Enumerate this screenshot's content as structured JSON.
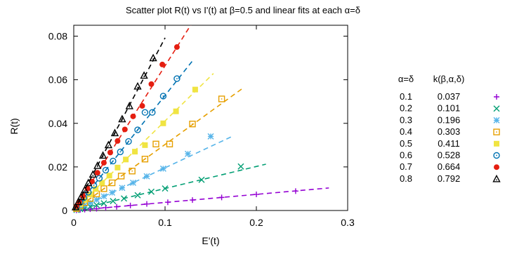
{
  "chart_data": {
    "type": "scatter",
    "title": "Scatter plot R(t) vs I'(t) at β=0.5 and linear fits at each α=δ",
    "xlabel": "E'(t)",
    "ylabel": "R(t)",
    "xlim": [
      0,
      0.3
    ],
    "ylim": [
      0,
      0.085
    ],
    "xticks": [
      "0",
      "0.1",
      "0.2",
      "0.3"
    ],
    "yticks": [
      "0",
      "0.02",
      "0.04",
      "0.06",
      "0.08"
    ],
    "grid": false,
    "legend_position": "right",
    "legend_headers": [
      "α=δ",
      "k(β,α,δ)"
    ],
    "series": [
      {
        "name": "0.1",
        "k": "0.037",
        "color": "#9400d3",
        "marker": "plus",
        "x": [
          0.003,
          0.007,
          0.012,
          0.018,
          0.025,
          0.035,
          0.047,
          0.062,
          0.08,
          0.103,
          0.13,
          0.162,
          0.2,
          0.243
        ],
        "y": [
          0.0001,
          0.0003,
          0.0004,
          0.0006,
          0.0008,
          0.0013,
          0.0017,
          0.0023,
          0.003,
          0.0038,
          0.0048,
          0.006,
          0.0074,
          0.0089
        ]
      },
      {
        "name": "0.2",
        "k": "0.101",
        "color": "#009e73",
        "marker": "x",
        "x": [
          0.003,
          0.007,
          0.012,
          0.018,
          0.025,
          0.033,
          0.043,
          0.055,
          0.07,
          0.085,
          0.1,
          0.14,
          0.183
        ],
        "y": [
          0.0003,
          0.0007,
          0.0012,
          0.0018,
          0.0025,
          0.0033,
          0.0043,
          0.0055,
          0.007,
          0.0086,
          0.0101,
          0.0141,
          0.0202
        ]
      },
      {
        "name": "0.3",
        "k": "0.196",
        "color": "#56b4e9",
        "marker": "star",
        "x": [
          0.003,
          0.007,
          0.012,
          0.018,
          0.025,
          0.033,
          0.042,
          0.053,
          0.065,
          0.08,
          0.098,
          0.125,
          0.15
        ],
        "y": [
          0.0006,
          0.0014,
          0.0024,
          0.0035,
          0.0049,
          0.0065,
          0.0082,
          0.0104,
          0.0127,
          0.0157,
          0.0192,
          0.026,
          0.034
        ]
      },
      {
        "name": "0.4",
        "k": "0.303",
        "color": "#e69f00",
        "marker": "square-dot",
        "x": [
          0.003,
          0.007,
          0.012,
          0.018,
          0.025,
          0.033,
          0.042,
          0.052,
          0.064,
          0.078,
          0.09,
          0.105,
          0.13,
          0.162
        ],
        "y": [
          0.0009,
          0.0021,
          0.0036,
          0.0055,
          0.0076,
          0.01,
          0.0127,
          0.0158,
          0.0181,
          0.0236,
          0.0305,
          0.0305,
          0.0397,
          0.0512
        ]
      },
      {
        "name": "0.5",
        "k": "0.411",
        "color": "#f0e442",
        "marker": "filled-square",
        "x": [
          0.003,
          0.007,
          0.012,
          0.018,
          0.024,
          0.031,
          0.039,
          0.048,
          0.057,
          0.067,
          0.078,
          0.098,
          0.112,
          0.133
        ],
        "y": [
          0.0012,
          0.0029,
          0.0049,
          0.0074,
          0.0099,
          0.0127,
          0.016,
          0.0197,
          0.0234,
          0.027,
          0.03,
          0.04,
          0.0455,
          0.0555
        ]
      },
      {
        "name": "0.6",
        "k": "0.528",
        "color": "#0072b2",
        "marker": "circle-dot",
        "x": [
          0.003,
          0.007,
          0.011,
          0.016,
          0.022,
          0.028,
          0.035,
          0.043,
          0.051,
          0.06,
          0.07,
          0.078,
          0.086,
          0.098,
          0.113
        ],
        "y": [
          0.0016,
          0.0037,
          0.0058,
          0.0084,
          0.0116,
          0.0148,
          0.0185,
          0.0227,
          0.0269,
          0.0317,
          0.037,
          0.045,
          0.045,
          0.0525,
          0.0605
        ]
      },
      {
        "name": "0.7",
        "k": "0.664",
        "color": "#e51e10",
        "marker": "filled-circle",
        "x": [
          0.003,
          0.006,
          0.01,
          0.015,
          0.02,
          0.026,
          0.033,
          0.04,
          0.048,
          0.056,
          0.065,
          0.075,
          0.085,
          0.097,
          0.113
        ],
        "y": [
          0.002,
          0.004,
          0.0066,
          0.01,
          0.0133,
          0.0173,
          0.0219,
          0.0266,
          0.0319,
          0.0372,
          0.0432,
          0.048,
          0.058,
          0.067,
          0.075
        ]
      },
      {
        "name": "0.8",
        "k": "0.792",
        "color": "#000000",
        "marker": "triangle",
        "x": [
          0.002,
          0.005,
          0.008,
          0.012,
          0.016,
          0.021,
          0.026,
          0.032,
          0.038,
          0.045,
          0.053,
          0.061,
          0.07,
          0.077,
          0.087
        ],
        "y": [
          0.0016,
          0.004,
          0.0063,
          0.0095,
          0.0127,
          0.0166,
          0.0206,
          0.0253,
          0.0301,
          0.0356,
          0.042,
          0.048,
          0.057,
          0.062,
          0.07
        ]
      }
    ]
  }
}
